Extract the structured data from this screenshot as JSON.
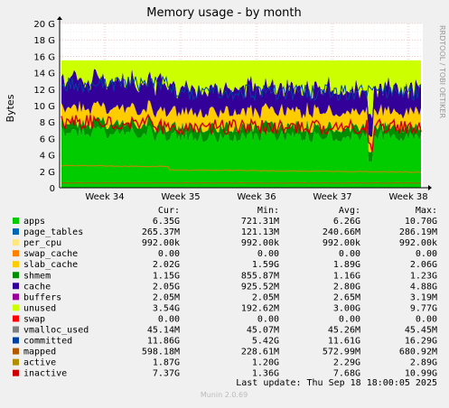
{
  "chart_data": {
    "type": "area",
    "title": "Memory usage - by month",
    "ylabel": "Bytes",
    "side_label": "RRDTOOL / TOBI OETIKER",
    "yticks": [
      "0",
      "2 G",
      "4 G",
      "6 G",
      "8 G",
      "10 G",
      "12 G",
      "14 G",
      "16 G",
      "18 G",
      "20 G"
    ],
    "yrange_gb": [
      0,
      20
    ],
    "xticks": [
      "Week 34",
      "Week 35",
      "Week 36",
      "Week 37",
      "Week 38"
    ],
    "grid": true,
    "legend_placement": "bottom",
    "columns": [
      "Cur:",
      "Min:",
      "Avg:",
      "Max:"
    ],
    "series": [
      {
        "name": "apps",
        "color": "#00cc00",
        "cur": "6.35G",
        "min": "721.31M",
        "avg": "6.26G",
        "max": "10.70G"
      },
      {
        "name": "page_tables",
        "color": "#0066b3",
        "cur": "265.37M",
        "min": "121.13M",
        "avg": "240.66M",
        "max": "286.19M"
      },
      {
        "name": "per_cpu",
        "color": "#ffe680",
        "cur": "992.00k",
        "min": "992.00k",
        "avg": "992.00k",
        "max": "992.00k"
      },
      {
        "name": "swap_cache",
        "color": "#ff8000",
        "cur": "0.00",
        "min": "0.00",
        "avg": "0.00",
        "max": "0.00"
      },
      {
        "name": "slab_cache",
        "color": "#ffcc00",
        "cur": "2.02G",
        "min": "1.59G",
        "avg": "1.89G",
        "max": "2.06G"
      },
      {
        "name": "shmem",
        "color": "#008f00",
        "cur": "1.15G",
        "min": "855.87M",
        "avg": "1.16G",
        "max": "1.23G"
      },
      {
        "name": "cache",
        "color": "#330099",
        "cur": "2.05G",
        "min": "925.52M",
        "avg": "2.80G",
        "max": "4.88G"
      },
      {
        "name": "buffers",
        "color": "#990099",
        "cur": "2.05M",
        "min": "2.05M",
        "avg": "2.65M",
        "max": "3.19M"
      },
      {
        "name": "unused",
        "color": "#ccff00",
        "cur": "3.54G",
        "min": "192.62M",
        "avg": "3.00G",
        "max": "9.77G"
      },
      {
        "name": "swap",
        "color": "#ff0000",
        "cur": "0.00",
        "min": "0.00",
        "avg": "0.00",
        "max": "0.00"
      },
      {
        "name": "vmalloc_used",
        "color": "#808080",
        "cur": "45.14M",
        "min": "45.07M",
        "avg": "45.26M",
        "max": "45.45M"
      },
      {
        "name": "committed",
        "color": "#0040a0",
        "cur": "11.86G",
        "min": "5.42G",
        "avg": "11.61G",
        "max": "16.29G"
      },
      {
        "name": "mapped",
        "color": "#b35a00",
        "cur": "598.18M",
        "min": "228.61M",
        "avg": "572.99M",
        "max": "680.92M"
      },
      {
        "name": "active",
        "color": "#b38f00",
        "cur": "1.87G",
        "min": "1.20G",
        "avg": "2.29G",
        "max": "2.89G"
      },
      {
        "name": "inactive",
        "color": "#cc0000",
        "cur": "7.37G",
        "min": "1.36G",
        "avg": "7.68G",
        "max": "10.99G"
      }
    ]
  },
  "footer": {
    "last_update": "Last update: Thu Sep 18 18:00:05 2025",
    "munin_version": "Munin 2.0.69"
  }
}
